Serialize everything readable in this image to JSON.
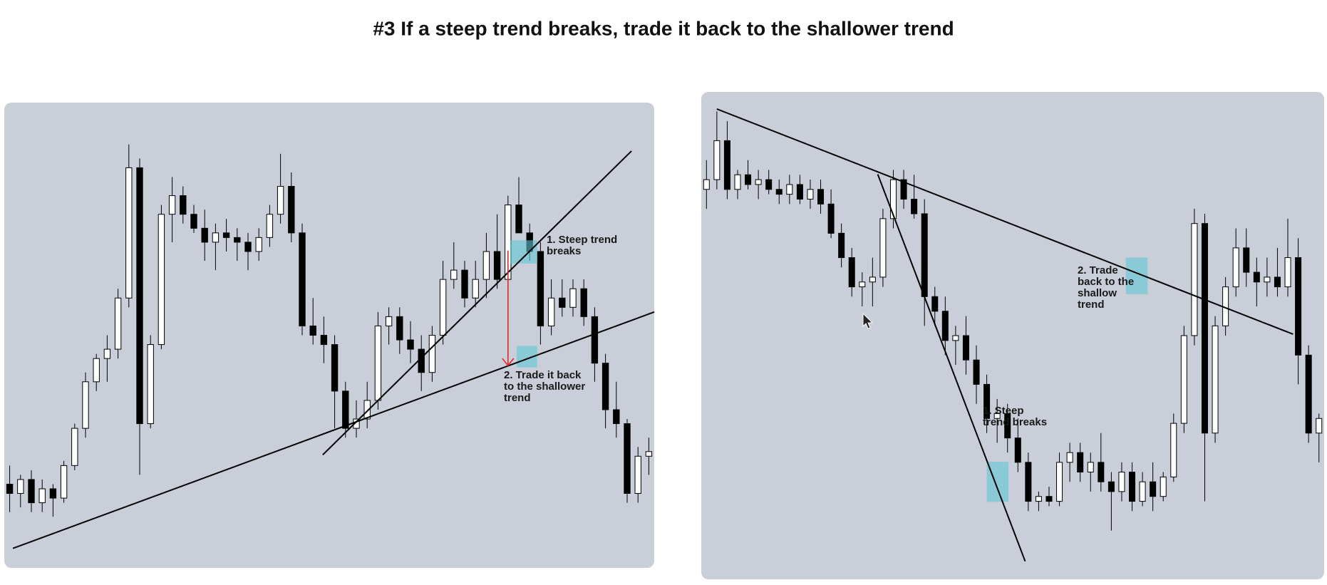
{
  "title": "#3 If a steep trend breaks, trade it back to the shallower trend",
  "chart_data": [
    {
      "type": "candlestick",
      "xlim": [
        0,
        60
      ],
      "ylim": [
        0,
        100
      ],
      "up_color": "#ffffff",
      "down_color": "#000000",
      "panel_color": "#c9ced8",
      "ohlc": [
        [
          18,
          22,
          12,
          16
        ],
        [
          16,
          20,
          13,
          19
        ],
        [
          19,
          21,
          12,
          14
        ],
        [
          14,
          19,
          12,
          17
        ],
        [
          17,
          18,
          11,
          15
        ],
        [
          15,
          23,
          14,
          22
        ],
        [
          22,
          31,
          21,
          30
        ],
        [
          30,
          42,
          28,
          40
        ],
        [
          40,
          46,
          38,
          45
        ],
        [
          45,
          50,
          40,
          47
        ],
        [
          47,
          60,
          45,
          58
        ],
        [
          58,
          91,
          56,
          86
        ],
        [
          86,
          88,
          20,
          31
        ],
        [
          31,
          50,
          30,
          48
        ],
        [
          48,
          78,
          47,
          76
        ],
        [
          76,
          84,
          70,
          80
        ],
        [
          80,
          82,
          74,
          76
        ],
        [
          76,
          78,
          72,
          73
        ],
        [
          73,
          77,
          66,
          70
        ],
        [
          70,
          74,
          64,
          72
        ],
        [
          72,
          75,
          68,
          71
        ],
        [
          71,
          73,
          66,
          70
        ],
        [
          70,
          72,
          64,
          68
        ],
        [
          68,
          73,
          66,
          71
        ],
        [
          71,
          78,
          69,
          76
        ],
        [
          76,
          89,
          74,
          82
        ],
        [
          82,
          85,
          70,
          72
        ],
        [
          72,
          74,
          50,
          52
        ],
        [
          52,
          58,
          48,
          50
        ],
        [
          50,
          54,
          44,
          48
        ],
        [
          48,
          50,
          30,
          38
        ],
        [
          38,
          40,
          28,
          30
        ],
        [
          30,
          36,
          28,
          32
        ],
        [
          32,
          40,
          30,
          36
        ],
        [
          36,
          55,
          34,
          52
        ],
        [
          52,
          56,
          48,
          54
        ],
        [
          54,
          56,
          46,
          49
        ],
        [
          49,
          53,
          44,
          47
        ],
        [
          47,
          50,
          38,
          42
        ],
        [
          42,
          52,
          40,
          50
        ],
        [
          50,
          66,
          48,
          62
        ],
        [
          62,
          70,
          60,
          64
        ],
        [
          64,
          66,
          56,
          58
        ],
        [
          58,
          66,
          56,
          62
        ],
        [
          62,
          72,
          58,
          68
        ],
        [
          68,
          76,
          60,
          62
        ],
        [
          62,
          80,
          60,
          78
        ],
        [
          78,
          84,
          72,
          72
        ],
        [
          72,
          74,
          66,
          68
        ],
        [
          68,
          70,
          48,
          52
        ],
        [
          52,
          62,
          50,
          58
        ],
        [
          58,
          62,
          54,
          56
        ],
        [
          56,
          62,
          54,
          60
        ],
        [
          60,
          62,
          52,
          54
        ],
        [
          54,
          56,
          40,
          44
        ],
        [
          44,
          46,
          30,
          34
        ],
        [
          34,
          40,
          28,
          31
        ],
        [
          31,
          32,
          14,
          16
        ],
        [
          16,
          26,
          14,
          24
        ],
        [
          24,
          28,
          20,
          25
        ]
      ],
      "trendlines": [
        {
          "x": [
            0.8,
            60
          ],
          "y": [
            4.2,
            55
          ]
        },
        {
          "x": [
            29.4,
            57.9
          ],
          "y": [
            24.3,
            89.6
          ]
        }
      ],
      "highlights": [
        {
          "x": [
            46.7,
            49.2
          ],
          "y": [
            65.4,
            70.4
          ]
        },
        {
          "x": [
            47.3,
            49.2
          ],
          "y": [
            43.1,
            47.7
          ]
        }
      ],
      "arrow": {
        "x": 46.5,
        "y": [
          68.2,
          43.5
        ],
        "color": "#e0262b"
      },
      "annotations": [
        {
          "lines": [
            "1. Steep trend",
            "breaks"
          ]
        },
        {
          "lines": [
            "2. Trade it back",
            "to the shallower",
            "trend"
          ]
        }
      ]
    },
    {
      "type": "candlestick",
      "xlim": [
        0,
        60
      ],
      "ylim": [
        0,
        100
      ],
      "up_color": "#ffffff",
      "down_color": "#000000",
      "panel_color": "#c9ced8",
      "ohlc": [
        [
          80,
          86,
          76,
          82
        ],
        [
          82,
          96,
          80,
          90
        ],
        [
          90,
          94,
          78,
          80
        ],
        [
          80,
          84,
          78,
          83
        ],
        [
          83,
          86,
          80,
          81
        ],
        [
          81,
          84,
          78,
          82
        ],
        [
          82,
          84,
          79,
          80
        ],
        [
          80,
          82,
          77,
          79
        ],
        [
          79,
          83,
          77,
          81
        ],
        [
          81,
          83,
          77,
          78
        ],
        [
          78,
          82,
          76,
          80
        ],
        [
          80,
          82,
          75,
          77
        ],
        [
          77,
          80,
          70,
          71
        ],
        [
          71,
          73,
          64,
          66
        ],
        [
          66,
          68,
          58,
          60
        ],
        [
          60,
          63,
          56,
          61
        ],
        [
          61,
          66,
          56,
          62
        ],
        [
          62,
          76,
          60,
          74
        ],
        [
          74,
          84,
          72,
          82
        ],
        [
          82,
          84,
          76,
          78
        ],
        [
          78,
          83,
          74,
          75
        ],
        [
          75,
          78,
          52,
          58
        ],
        [
          58,
          60,
          52,
          55
        ],
        [
          55,
          58,
          46,
          49
        ],
        [
          49,
          52,
          44,
          50
        ],
        [
          50,
          54,
          42,
          45
        ],
        [
          45,
          48,
          36,
          40
        ],
        [
          40,
          42,
          30,
          33
        ],
        [
          33,
          37,
          28,
          34
        ],
        [
          34,
          36,
          26,
          29
        ],
        [
          29,
          33,
          22,
          24
        ],
        [
          24,
          26,
          14,
          16
        ],
        [
          16,
          18,
          14,
          17
        ],
        [
          17,
          19,
          15,
          16
        ],
        [
          16,
          26,
          15,
          24
        ],
        [
          24,
          28,
          20,
          26
        ],
        [
          26,
          28,
          20,
          22
        ],
        [
          22,
          26,
          18,
          24
        ],
        [
          24,
          30,
          18,
          20
        ],
        [
          20,
          22,
          10,
          18
        ],
        [
          18,
          24,
          16,
          22
        ],
        [
          22,
          24,
          14,
          16
        ],
        [
          16,
          22,
          15,
          20
        ],
        [
          20,
          24,
          14,
          17
        ],
        [
          17,
          22,
          16,
          21
        ],
        [
          21,
          34,
          20,
          32
        ],
        [
          32,
          52,
          30,
          50
        ],
        [
          50,
          76,
          48,
          73
        ],
        [
          73,
          75,
          16,
          30
        ],
        [
          30,
          54,
          28,
          52
        ],
        [
          52,
          62,
          50,
          60
        ],
        [
          60,
          72,
          58,
          68
        ],
        [
          68,
          72,
          60,
          63
        ],
        [
          63,
          66,
          56,
          61
        ],
        [
          61,
          66,
          58,
          62
        ],
        [
          62,
          68,
          58,
          60
        ],
        [
          60,
          74,
          58,
          66
        ],
        [
          66,
          70,
          40,
          46
        ],
        [
          46,
          48,
          28,
          30
        ],
        [
          30,
          34,
          24,
          33
        ]
      ],
      "trendlines": [
        {
          "x": [
            1.5,
            57
          ],
          "y": [
            96.5,
            50.3
          ]
        },
        {
          "x": [
            17,
            31.2
          ],
          "y": [
            83.1,
            3.7
          ]
        }
      ],
      "highlights": [
        {
          "x": [
            40.9,
            43
          ],
          "y": [
            58.5,
            66
          ]
        },
        {
          "x": [
            27.5,
            29.6
          ],
          "y": [
            15.9,
            24.1
          ]
        }
      ],
      "annotations": [
        {
          "lines": [
            "2. Trade",
            "back to the",
            "shallow",
            "trend"
          ]
        },
        {
          "lines": [
            "1. Steep",
            "trend breaks"
          ]
        }
      ]
    }
  ]
}
